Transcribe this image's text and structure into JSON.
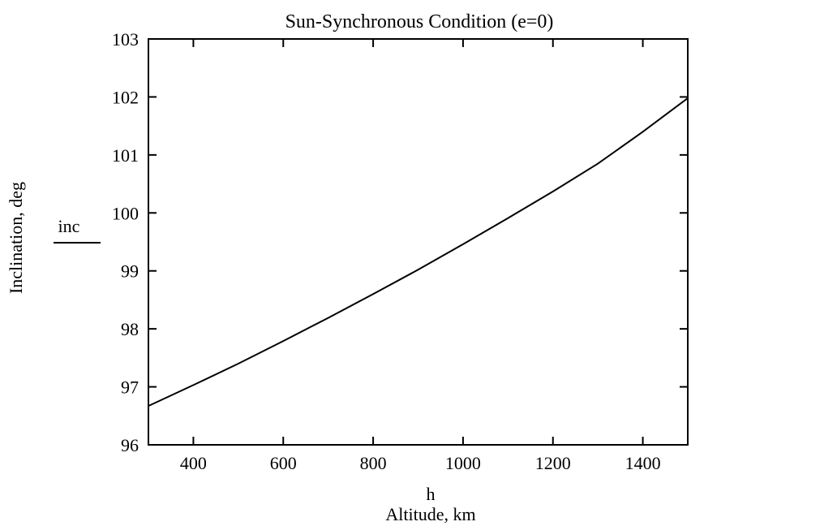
{
  "chart_data": {
    "type": "line",
    "title": "Sun-Synchronous Condition (e=0)",
    "xlabel_var": "h",
    "xlabel": "Altitude, km",
    "ylabel": "Inclination, deg",
    "ylabel_var": "inc",
    "xlim": [
      300,
      1500
    ],
    "ylim": [
      96,
      103
    ],
    "xticks": [
      400,
      600,
      800,
      1000,
      1200,
      1400
    ],
    "yticks": [
      96,
      97,
      98,
      99,
      100,
      101,
      102,
      103
    ],
    "grid": false,
    "series": [
      {
        "x": [
          300,
          400,
          500,
          600,
          700,
          800,
          900,
          1000,
          1100,
          1200,
          1300,
          1400,
          1500
        ],
        "y": [
          96.67,
          97.03,
          97.4,
          97.79,
          98.19,
          98.6,
          99.02,
          99.46,
          99.91,
          100.37,
          100.85,
          101.4,
          101.98
        ]
      }
    ]
  }
}
